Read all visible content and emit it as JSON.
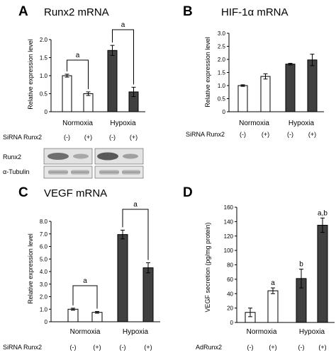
{
  "chart_data": [
    {
      "type": "bar",
      "panel": "A",
      "title": "Runx2 mRNA",
      "ylabel": "Relative expression level",
      "ylim": [
        0,
        2.0
      ],
      "yticks": [
        "0",
        "0.5",
        "1.0",
        "1.5",
        "2.0"
      ],
      "groups": [
        "Normoxia",
        "Hypoxia"
      ],
      "conditions": [
        "(-)",
        "(+)",
        "(-)",
        "(+)"
      ],
      "condition_label": "SiRNA Runx2",
      "values": [
        1.0,
        0.5,
        1.7,
        0.55
      ],
      "errors": [
        0.04,
        0.05,
        0.14,
        0.13
      ],
      "fills": [
        "#ffffff",
        "#ffffff",
        "#404040",
        "#404040"
      ],
      "significance": [
        {
          "label": "a",
          "bars": [
            0,
            1
          ]
        },
        {
          "label": "a",
          "bars": [
            2,
            3
          ]
        }
      ],
      "blot": {
        "labels": [
          "Runx2",
          "α-Tubulin"
        ]
      }
    },
    {
      "type": "bar",
      "panel": "B",
      "title": "HIF-1α mRNA",
      "ylabel": "Relative expression level",
      "ylim": [
        0,
        3.0
      ],
      "yticks": [
        "0",
        "0.5",
        "1.0",
        "1.5",
        "2.0",
        "2.5",
        "3.0"
      ],
      "groups": [
        "Normoxia",
        "Hypoxia"
      ],
      "conditions": [
        "(-)",
        "(+)",
        "(-)",
        "(+)"
      ],
      "condition_label": "SiRNA Runx2",
      "values": [
        1.0,
        1.35,
        1.82,
        1.98
      ],
      "errors": [
        0.03,
        0.1,
        0.03,
        0.22
      ],
      "fills": [
        "#ffffff",
        "#ffffff",
        "#404040",
        "#404040"
      ],
      "significance": []
    },
    {
      "type": "bar",
      "panel": "C",
      "title": "VEGF mRNA",
      "ylabel": "Relative expression level",
      "ylim": [
        0,
        8.0
      ],
      "yticks": [
        "0",
        "1.0",
        "2.0",
        "3.0",
        "4.0",
        "5.0",
        "6.0",
        "7.0",
        "8.0"
      ],
      "groups": [
        "Normoxia",
        "Hypoxia"
      ],
      "conditions": [
        "(-)",
        "(+)",
        "(-)",
        "(+)"
      ],
      "condition_label": "SiRNA Runx2",
      "values": [
        1.0,
        0.75,
        6.95,
        4.3
      ],
      "errors": [
        0.08,
        0.07,
        0.35,
        0.4
      ],
      "fills": [
        "#ffffff",
        "#ffffff",
        "#404040",
        "#404040"
      ],
      "significance": [
        {
          "label": "a",
          "bars": [
            0,
            1
          ]
        },
        {
          "label": "a",
          "bars": [
            2,
            3
          ]
        }
      ]
    },
    {
      "type": "bar",
      "panel": "D",
      "title": "",
      "ylabel": "VEGF secretion (pg/mg protein)",
      "ylim": [
        0,
        160
      ],
      "yticks": [
        "0",
        "20",
        "40",
        "60",
        "80",
        "100",
        "120",
        "140",
        "160"
      ],
      "groups": [
        "Normoxia",
        "Hypoxia"
      ],
      "conditions": [
        "(-)",
        "(+)",
        "(-)",
        "(+)"
      ],
      "condition_label": "AdRunx2",
      "values": [
        14,
        44,
        61,
        135
      ],
      "errors": [
        6,
        4,
        13,
        10
      ],
      "fills": [
        "#ffffff",
        "#ffffff",
        "#404040",
        "#404040"
      ],
      "bar_labels": [
        "",
        "a",
        "b",
        "a,b"
      ],
      "significance": []
    }
  ]
}
